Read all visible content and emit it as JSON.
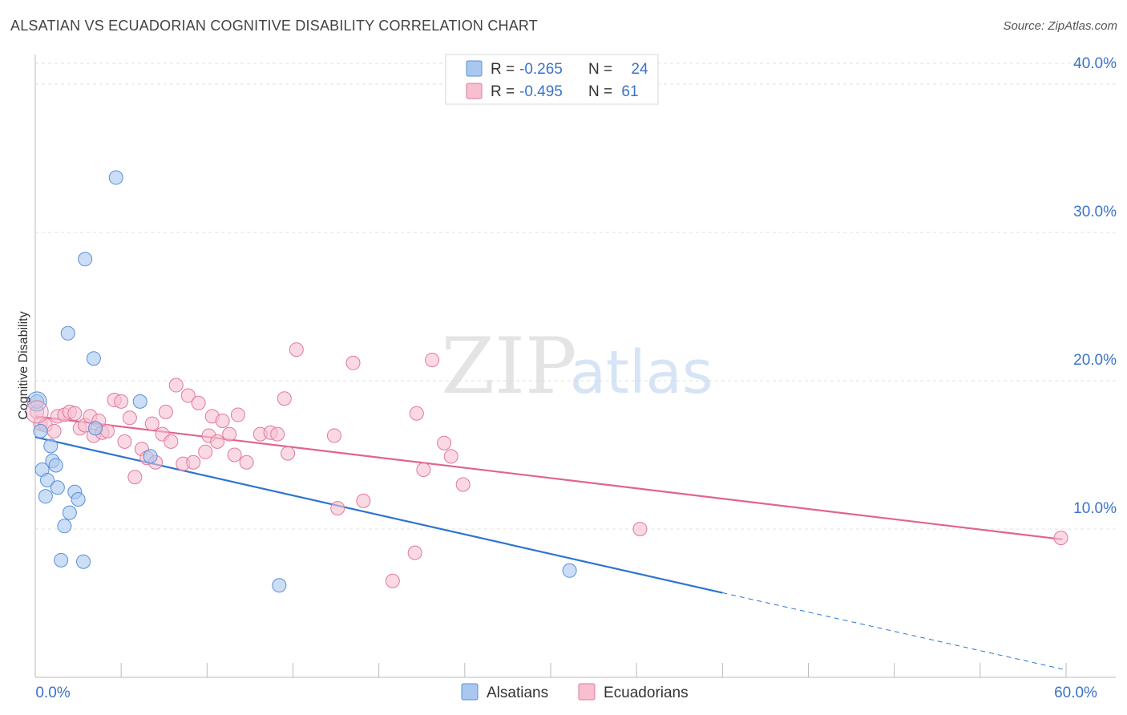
{
  "title": "ALSATIAN VS ECUADORIAN COGNITIVE DISABILITY CORRELATION CHART",
  "source": "Source: ZipAtlas.com",
  "watermark": {
    "zip": "ZIP",
    "atlas": "atlas"
  },
  "legend_stats": [
    {
      "r_label": "R =",
      "r_value": "-0.265",
      "n_label": "N =",
      "n_value": "24",
      "color": "#a9c8f0",
      "stroke": "#5b8fd6"
    },
    {
      "r_label": "R =",
      "r_value": "-0.495",
      "n_label": "N =",
      "n_value": "61",
      "color": "#f7bfd0",
      "stroke": "#e07a9c"
    }
  ],
  "chart_data": {
    "type": "scatter",
    "ylabel": "Cognitive Disability",
    "xlabel": "",
    "xlim": [
      0,
      60
    ],
    "ylim": [
      0,
      42
    ],
    "x_tick_labels": [
      {
        "value": 0,
        "label": "0.0%"
      },
      {
        "value": 60,
        "label": "60.0%"
      }
    ],
    "y_tick_labels": [
      {
        "value": 10,
        "label": "10.0%"
      },
      {
        "value": 20,
        "label": "20.0%"
      },
      {
        "value": 30,
        "label": "30.0%"
      },
      {
        "value": 40,
        "label": "40.0%"
      }
    ],
    "grid": true,
    "legend_position": "bottom-center",
    "series": [
      {
        "name": "Alsatians",
        "color": "#a9c8f0",
        "stroke": "#5b8fd6",
        "line_color": "#2e74d0",
        "trend": {
          "x0": 0,
          "y0": 16.2,
          "x1": 40,
          "y1": 5.7,
          "dash_to_x": 60,
          "dash_to_y": 0.5
        },
        "points": [
          {
            "x": 0.1,
            "y": 18.6
          },
          {
            "x": 0.4,
            "y": 14.0
          },
          {
            "x": 0.6,
            "y": 12.2
          },
          {
            "x": 0.7,
            "y": 13.3
          },
          {
            "x": 0.9,
            "y": 15.6
          },
          {
            "x": 1.0,
            "y": 14.6
          },
          {
            "x": 1.2,
            "y": 14.3
          },
          {
            "x": 1.3,
            "y": 12.8
          },
          {
            "x": 1.5,
            "y": 7.9
          },
          {
            "x": 1.7,
            "y": 10.2
          },
          {
            "x": 1.9,
            "y": 23.2
          },
          {
            "x": 2.0,
            "y": 11.1
          },
          {
            "x": 2.3,
            "y": 12.5
          },
          {
            "x": 2.5,
            "y": 12.0
          },
          {
            "x": 2.8,
            "y": 7.8
          },
          {
            "x": 2.9,
            "y": 28.2
          },
          {
            "x": 3.4,
            "y": 21.5
          },
          {
            "x": 3.5,
            "y": 16.8
          },
          {
            "x": 4.7,
            "y": 33.7
          },
          {
            "x": 6.1,
            "y": 18.6
          },
          {
            "x": 6.7,
            "y": 14.9
          },
          {
            "x": 14.2,
            "y": 6.2
          },
          {
            "x": 31.1,
            "y": 7.2
          },
          {
            "x": 0.3,
            "y": 16.6
          }
        ]
      },
      {
        "name": "Ecuadorians",
        "color": "#f7bfd0",
        "stroke": "#e07a9c",
        "line_color": "#e0648e",
        "trend": {
          "x0": 0,
          "y0": 17.6,
          "x1": 59.8,
          "y1": 9.3
        },
        "points": [
          {
            "x": 0.1,
            "y": 17.9
          },
          {
            "x": 0.3,
            "y": 17.1
          },
          {
            "x": 0.6,
            "y": 17.0
          },
          {
            "x": 1.1,
            "y": 16.6
          },
          {
            "x": 1.3,
            "y": 17.6
          },
          {
            "x": 1.7,
            "y": 17.7
          },
          {
            "x": 2.0,
            "y": 17.9
          },
          {
            "x": 2.3,
            "y": 17.8
          },
          {
            "x": 2.6,
            "y": 16.8
          },
          {
            "x": 2.9,
            "y": 17.0
          },
          {
            "x": 3.2,
            "y": 17.6
          },
          {
            "x": 3.4,
            "y": 16.3
          },
          {
            "x": 3.7,
            "y": 17.3
          },
          {
            "x": 3.9,
            "y": 16.5
          },
          {
            "x": 4.2,
            "y": 16.6
          },
          {
            "x": 4.6,
            "y": 18.7
          },
          {
            "x": 5.0,
            "y": 18.6
          },
          {
            "x": 5.2,
            "y": 15.9
          },
          {
            "x": 5.5,
            "y": 17.5
          },
          {
            "x": 5.8,
            "y": 13.5
          },
          {
            "x": 6.2,
            "y": 15.4
          },
          {
            "x": 6.5,
            "y": 14.8
          },
          {
            "x": 6.8,
            "y": 17.1
          },
          {
            "x": 7.0,
            "y": 14.5
          },
          {
            "x": 7.4,
            "y": 16.4
          },
          {
            "x": 7.6,
            "y": 17.9
          },
          {
            "x": 7.9,
            "y": 15.9
          },
          {
            "x": 8.2,
            "y": 19.7
          },
          {
            "x": 8.6,
            "y": 14.4
          },
          {
            "x": 8.9,
            "y": 19.0
          },
          {
            "x": 9.2,
            "y": 14.5
          },
          {
            "x": 9.5,
            "y": 18.5
          },
          {
            "x": 9.9,
            "y": 15.2
          },
          {
            "x": 10.1,
            "y": 16.3
          },
          {
            "x": 10.3,
            "y": 17.6
          },
          {
            "x": 10.6,
            "y": 15.9
          },
          {
            "x": 10.9,
            "y": 17.3
          },
          {
            "x": 11.3,
            "y": 16.4
          },
          {
            "x": 11.6,
            "y": 15.0
          },
          {
            "x": 11.8,
            "y": 17.7
          },
          {
            "x": 12.3,
            "y": 14.5
          },
          {
            "x": 13.1,
            "y": 16.4
          },
          {
            "x": 13.7,
            "y": 16.5
          },
          {
            "x": 14.1,
            "y": 16.4
          },
          {
            "x": 14.5,
            "y": 18.8
          },
          {
            "x": 14.7,
            "y": 15.1
          },
          {
            "x": 15.2,
            "y": 22.1
          },
          {
            "x": 17.4,
            "y": 16.3
          },
          {
            "x": 17.6,
            "y": 11.4
          },
          {
            "x": 18.5,
            "y": 21.2
          },
          {
            "x": 19.1,
            "y": 11.9
          },
          {
            "x": 20.8,
            "y": 6.5
          },
          {
            "x": 22.1,
            "y": 8.4
          },
          {
            "x": 22.2,
            "y": 17.8
          },
          {
            "x": 22.6,
            "y": 14.0
          },
          {
            "x": 23.1,
            "y": 21.4
          },
          {
            "x": 23.8,
            "y": 15.8
          },
          {
            "x": 24.2,
            "y": 14.9
          },
          {
            "x": 24.9,
            "y": 13.0
          },
          {
            "x": 35.2,
            "y": 10.0
          },
          {
            "x": 59.7,
            "y": 9.4
          }
        ]
      }
    ]
  }
}
